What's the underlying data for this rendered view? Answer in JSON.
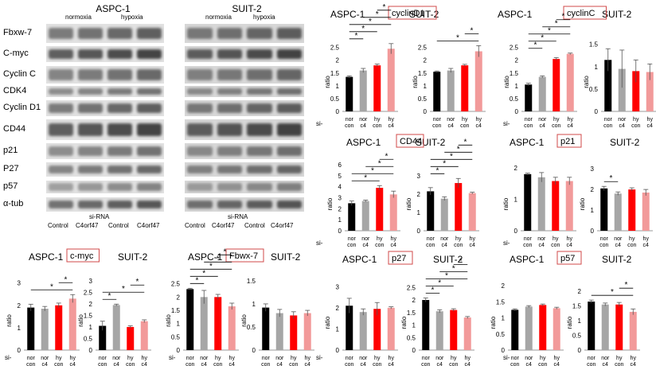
{
  "blots": {
    "left": {
      "title": "ASPC-1",
      "conditions": [
        "normoxia",
        "hypoxia"
      ]
    },
    "right": {
      "title": "SUIT-2",
      "conditions": [
        "normoxia",
        "hypoxia"
      ]
    },
    "rows": [
      "Fbxw-7",
      "C-myc",
      "Cyclin C",
      "CDK4",
      "Cyclin D1",
      "CD44",
      "p21",
      "P27",
      "p57",
      "α-tub"
    ],
    "sirna": "si-RNA",
    "lanes_left": [
      "Control",
      "C4orf47",
      "Control",
      "C4orf47"
    ],
    "lanes_right": [
      "Control",
      "C4orf47",
      "Control",
      "C4orf47"
    ]
  },
  "common": {
    "ylabel": "ratio",
    "si_prefix": "si-",
    "x_top": [
      "nor",
      "nor",
      "hy",
      "hy"
    ],
    "x_bottom": [
      "con",
      "c4",
      "con",
      "c4"
    ],
    "star": "*",
    "colors": [
      "#000000",
      "#a6a6a6",
      "#ff0000",
      "#f29a9a"
    ]
  },
  "chart_data": [
    {
      "id": "cyclinD1",
      "type": "bar",
      "title": "cyclinD1",
      "panels": [
        {
          "name": "ASPC-1",
          "yticks": [
            0,
            0.5,
            1,
            1.5,
            2,
            2.5
          ],
          "ylim": [
            0,
            2.8
          ],
          "values": [
            1.35,
            1.6,
            1.8,
            2.45
          ],
          "errors": [
            0.04,
            0.08,
            0.05,
            0.2
          ],
          "sig": [
            [
              0,
              1
            ],
            [
              0,
              2
            ],
            [
              0,
              3
            ],
            [
              1,
              3
            ],
            [
              2,
              3
            ]
          ]
        },
        {
          "name": "SUIT-2",
          "yticks": [
            0,
            0.5,
            1,
            1.5,
            2,
            2.5
          ],
          "ylim": [
            0,
            2.8
          ],
          "values": [
            1.55,
            1.6,
            1.8,
            2.35
          ],
          "errors": [
            0.03,
            0.08,
            0.04,
            0.22
          ],
          "sig": [
            [
              0,
              3
            ],
            [
              2,
              3
            ]
          ]
        }
      ]
    },
    {
      "id": "cyclinC",
      "type": "bar",
      "title": "cyclinC",
      "panels": [
        {
          "name": "ASPC-1",
          "yticks": [
            0,
            0.5,
            1,
            1.5,
            2,
            2.5
          ],
          "ylim": [
            0,
            2.8
          ],
          "values": [
            1.05,
            1.35,
            2.05,
            2.25
          ],
          "errors": [
            0.05,
            0.04,
            0.05,
            0.03
          ],
          "sig": [
            [
              0,
              1
            ],
            [
              0,
              2
            ],
            [
              0,
              3
            ],
            [
              1,
              3
            ],
            [
              2,
              3
            ]
          ]
        },
        {
          "name": "SUIT-2",
          "yticks": [
            0,
            0.5,
            1,
            1.5
          ],
          "ylim": [
            0,
            1.6
          ],
          "values": [
            1.15,
            0.95,
            0.9,
            0.88
          ],
          "errors": [
            0.25,
            0.42,
            0.25,
            0.18
          ],
          "sig": []
        }
      ]
    },
    {
      "id": "CD44",
      "type": "bar",
      "title": "CD44",
      "panels": [
        {
          "name": "ASPC-1",
          "yticks": [
            0,
            1,
            2,
            3,
            4,
            5,
            6
          ],
          "ylim": [
            0,
            6
          ],
          "values": [
            2.5,
            2.7,
            3.9,
            3.3
          ],
          "errors": [
            0.2,
            0.08,
            0.2,
            0.3
          ],
          "sig": [
            [
              0,
              2
            ],
            [
              0,
              3
            ],
            [
              1,
              3
            ],
            [
              2,
              3
            ]
          ]
        },
        {
          "name": "SUIT-2",
          "yticks": [
            0,
            1,
            2,
            3
          ],
          "ylim": [
            0,
            3.6
          ],
          "values": [
            2.15,
            1.75,
            2.6,
            2.05
          ],
          "errors": [
            0.2,
            0.1,
            0.25,
            0.05
          ],
          "sig": [
            [
              0,
              1
            ],
            [
              0,
              2
            ],
            [
              0,
              3
            ],
            [
              1,
              3
            ],
            [
              2,
              3
            ]
          ]
        }
      ]
    },
    {
      "id": "p21",
      "type": "bar",
      "title": "p21",
      "panels": [
        {
          "name": "ASPC-1",
          "yticks": [
            0,
            1,
            2
          ],
          "ylim": [
            0,
            2.1
          ],
          "values": [
            1.8,
            1.7,
            1.58,
            1.58
          ],
          "errors": [
            0.03,
            0.15,
            0.12,
            0.12
          ],
          "sig": []
        },
        {
          "name": "SUIT-2",
          "yticks": [
            0,
            1,
            2,
            3
          ],
          "ylim": [
            0,
            3.2
          ],
          "values": [
            2.05,
            1.8,
            2.0,
            1.85
          ],
          "errors": [
            0.1,
            0.08,
            0.08,
            0.15
          ],
          "sig": [
            [
              0,
              1
            ]
          ]
        }
      ]
    },
    {
      "id": "c-myc",
      "type": "bar",
      "title": "c-myc",
      "panels": [
        {
          "name": "ASPC-1",
          "yticks": [
            0,
            1,
            2,
            3
          ],
          "ylim": [
            0,
            3.2
          ],
          "values": [
            1.9,
            1.85,
            2.0,
            2.3
          ],
          "errors": [
            0.15,
            0.1,
            0.1,
            0.18
          ],
          "sig": [
            [
              0,
              3
            ],
            [
              2,
              3
            ]
          ]
        },
        {
          "name": "SUIT-2",
          "yticks": [
            0,
            0.5,
            1,
            1.5,
            2,
            2.5,
            3
          ],
          "ylim": [
            0,
            3.1
          ],
          "values": [
            1.05,
            1.95,
            1.0,
            1.25
          ],
          "errors": [
            0.2,
            0.04,
            0.05,
            0.06
          ],
          "sig": [
            [
              0,
              1
            ],
            [
              0,
              3
            ],
            [
              2,
              3
            ]
          ]
        }
      ]
    },
    {
      "id": "Fbwx-7",
      "type": "bar",
      "title": "Fbwx-7",
      "panels": [
        {
          "name": "ASPC-1",
          "yticks": [
            0,
            0.5,
            1,
            1.5,
            2,
            2.5
          ],
          "ylim": [
            0,
            2.7
          ],
          "values": [
            2.3,
            2.0,
            2.0,
            1.65
          ],
          "errors": [
            0.03,
            0.25,
            0.1,
            0.12
          ],
          "sig": [
            [
              0,
              1
            ],
            [
              0,
              2
            ],
            [
              0,
              3
            ],
            [
              1,
              3
            ],
            [
              2,
              3
            ]
          ]
        },
        {
          "name": "SUIT-2",
          "yticks": [
            0,
            0.5,
            1,
            1.5
          ],
          "ylim": [
            0,
            1.55
          ],
          "values": [
            0.92,
            0.8,
            0.75,
            0.8
          ],
          "errors": [
            0.08,
            0.08,
            0.08,
            0.06
          ],
          "sig": []
        }
      ]
    },
    {
      "id": "p27",
      "type": "bar",
      "title": "p27",
      "panels": [
        {
          "name": "ASPC-1",
          "yticks": [
            0,
            1,
            2,
            3
          ],
          "ylim": [
            0,
            3.2
          ],
          "values": [
            2.1,
            1.8,
            1.95,
            2.0
          ],
          "errors": [
            0.35,
            0.15,
            0.3,
            0.05
          ],
          "sig": []
        },
        {
          "name": "SUIT-2",
          "yticks": [
            0,
            0.5,
            1,
            1.5,
            2,
            2.5
          ],
          "ylim": [
            0,
            2.7
          ],
          "values": [
            2.0,
            1.55,
            1.6,
            1.3
          ],
          "errors": [
            0.08,
            0.06,
            0.05,
            0.04
          ],
          "sig": [
            [
              0,
              1
            ],
            [
              0,
              2
            ],
            [
              0,
              3
            ],
            [
              1,
              3
            ],
            [
              2,
              3
            ]
          ]
        }
      ]
    },
    {
      "id": "p57",
      "type": "bar",
      "title": "p57",
      "panels": [
        {
          "name": "ASPC-1",
          "yticks": [
            0,
            0.5,
            1,
            1.5,
            2
          ],
          "ylim": [
            0,
            2.1
          ],
          "values": [
            1.25,
            1.35,
            1.4,
            1.3
          ],
          "errors": [
            0.03,
            0.03,
            0.03,
            0.03
          ],
          "sig": []
        },
        {
          "name": "SUIT-2",
          "yticks": [
            0,
            0.5,
            1,
            1.5,
            2
          ],
          "ylim": [
            0,
            2.3
          ],
          "values": [
            1.65,
            1.55,
            1.55,
            1.3
          ],
          "errors": [
            0.05,
            0.05,
            0.07,
            0.1
          ],
          "sig": [
            [
              0,
              3
            ],
            [
              2,
              3
            ]
          ]
        }
      ]
    }
  ]
}
